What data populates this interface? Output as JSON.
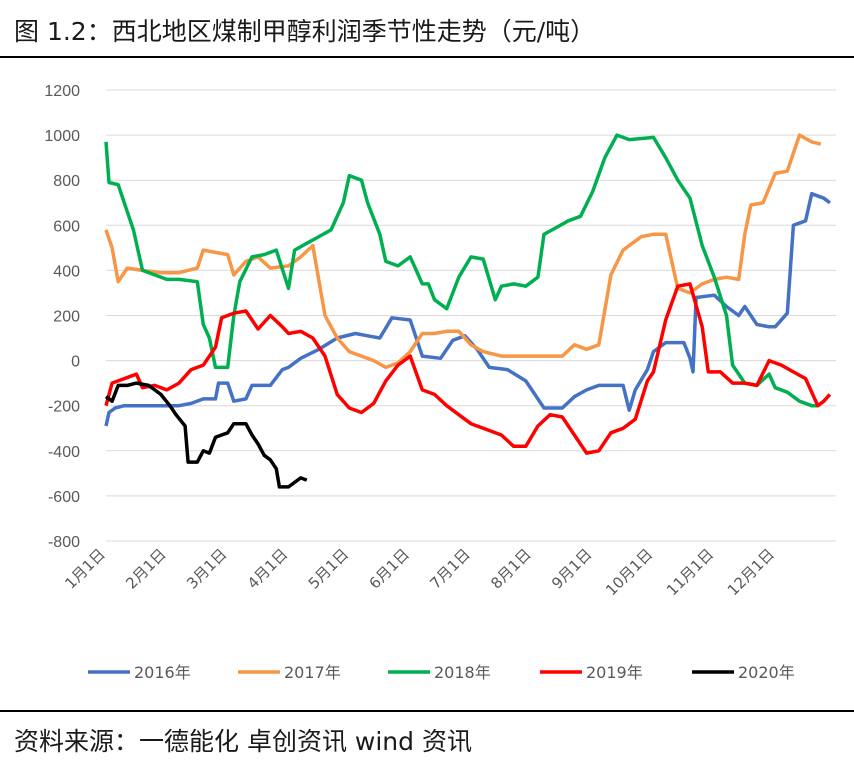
{
  "figure": {
    "title": "图 1.2：西北地区煤制甲醇利润季节性走势（元/吨）",
    "source": "资料来源：一德能化  卓创资讯  wind 资讯"
  },
  "chart_data": {
    "type": "line",
    "title": "图 1.2：西北地区煤制甲醇利润季节性走势（元/吨）",
    "ylabel": "",
    "xlabel": "",
    "ylim": [
      -800,
      1200
    ],
    "yticks": [
      -800,
      -600,
      -400,
      -200,
      0,
      200,
      400,
      600,
      800,
      1000,
      1200
    ],
    "x_domain": [
      0,
      12
    ],
    "xtick_positions": [
      0,
      1,
      2,
      3,
      4,
      5,
      6,
      7,
      8,
      9,
      10,
      11
    ],
    "xtick_labels": [
      "1月1日",
      "2月1日",
      "3月1日",
      "4月1日",
      "5月1日",
      "6月1日",
      "7月1日",
      "8月1日",
      "9月1日",
      "10月1日",
      "11月1日",
      "12月1日"
    ],
    "grid": true,
    "legend_position": "bottom",
    "series": [
      {
        "name": "2016年",
        "color": "#4472C4",
        "points": [
          [
            0,
            -290
          ],
          [
            0.05,
            -230
          ],
          [
            0.15,
            -210
          ],
          [
            0.3,
            -200
          ],
          [
            0.6,
            -200
          ],
          [
            0.9,
            -200
          ],
          [
            1.2,
            -200
          ],
          [
            1.4,
            -190
          ],
          [
            1.6,
            -170
          ],
          [
            1.8,
            -170
          ],
          [
            1.85,
            -100
          ],
          [
            2.0,
            -100
          ],
          [
            2.1,
            -180
          ],
          [
            2.3,
            -170
          ],
          [
            2.4,
            -110
          ],
          [
            2.7,
            -110
          ],
          [
            2.9,
            -40
          ],
          [
            3.0,
            -30
          ],
          [
            3.2,
            10
          ],
          [
            3.5,
            50
          ],
          [
            3.8,
            100
          ],
          [
            4.1,
            120
          ],
          [
            4.3,
            110
          ],
          [
            4.5,
            100
          ],
          [
            4.7,
            190
          ],
          [
            5.0,
            180
          ],
          [
            5.2,
            20
          ],
          [
            5.5,
            10
          ],
          [
            5.7,
            90
          ],
          [
            5.9,
            110
          ],
          [
            6.1,
            50
          ],
          [
            6.3,
            -30
          ],
          [
            6.6,
            -40
          ],
          [
            6.9,
            -90
          ],
          [
            7.2,
            -210
          ],
          [
            7.5,
            -210
          ],
          [
            7.7,
            -160
          ],
          [
            7.9,
            -130
          ],
          [
            8.1,
            -110
          ],
          [
            8.3,
            -110
          ],
          [
            8.5,
            -110
          ],
          [
            8.6,
            -220
          ],
          [
            8.7,
            -130
          ],
          [
            8.9,
            -40
          ],
          [
            9.0,
            40
          ],
          [
            9.2,
            80
          ],
          [
            9.5,
            80
          ],
          [
            9.6,
            10
          ],
          [
            9.65,
            -50
          ],
          [
            9.7,
            280
          ],
          [
            10.0,
            290
          ],
          [
            10.2,
            240
          ],
          [
            10.4,
            200
          ],
          [
            10.5,
            240
          ],
          [
            10.7,
            160
          ],
          [
            10.9,
            150
          ],
          [
            11.0,
            150
          ],
          [
            11.2,
            210
          ],
          [
            11.3,
            600
          ],
          [
            11.5,
            620
          ],
          [
            11.6,
            740
          ],
          [
            11.8,
            720
          ],
          [
            11.9,
            700
          ]
        ]
      },
      {
        "name": "2017年",
        "color": "#F79646",
        "points": [
          [
            0,
            580
          ],
          [
            0.1,
            500
          ],
          [
            0.2,
            350
          ],
          [
            0.35,
            410
          ],
          [
            0.6,
            400
          ],
          [
            0.9,
            390
          ],
          [
            1.2,
            390
          ],
          [
            1.5,
            410
          ],
          [
            1.6,
            490
          ],
          [
            1.8,
            480
          ],
          [
            2.0,
            470
          ],
          [
            2.1,
            380
          ],
          [
            2.3,
            440
          ],
          [
            2.5,
            460
          ],
          [
            2.7,
            410
          ],
          [
            3.0,
            420
          ],
          [
            3.2,
            460
          ],
          [
            3.4,
            510
          ],
          [
            3.6,
            200
          ],
          [
            3.8,
            100
          ],
          [
            4.0,
            40
          ],
          [
            4.2,
            20
          ],
          [
            4.4,
            0
          ],
          [
            4.6,
            -30
          ],
          [
            4.8,
            -10
          ],
          [
            5.0,
            40
          ],
          [
            5.2,
            120
          ],
          [
            5.4,
            120
          ],
          [
            5.6,
            130
          ],
          [
            5.8,
            130
          ],
          [
            6.0,
            70
          ],
          [
            6.2,
            40
          ],
          [
            6.5,
            20
          ],
          [
            6.7,
            20
          ],
          [
            7.0,
            20
          ],
          [
            7.3,
            20
          ],
          [
            7.5,
            20
          ],
          [
            7.7,
            70
          ],
          [
            7.9,
            50
          ],
          [
            8.1,
            70
          ],
          [
            8.3,
            380
          ],
          [
            8.5,
            490
          ],
          [
            8.8,
            550
          ],
          [
            9.0,
            560
          ],
          [
            9.2,
            560
          ],
          [
            9.4,
            320
          ],
          [
            9.6,
            300
          ],
          [
            9.8,
            340
          ],
          [
            10.0,
            360
          ],
          [
            10.2,
            370
          ],
          [
            10.4,
            360
          ],
          [
            10.5,
            560
          ],
          [
            10.6,
            690
          ],
          [
            10.8,
            700
          ],
          [
            11.0,
            830
          ],
          [
            11.2,
            840
          ],
          [
            11.4,
            1000
          ],
          [
            11.6,
            970
          ],
          [
            11.75,
            960
          ]
        ]
      },
      {
        "name": "2018年",
        "color": "#00B050",
        "points": [
          [
            0,
            970
          ],
          [
            0.05,
            790
          ],
          [
            0.2,
            780
          ],
          [
            0.3,
            700
          ],
          [
            0.45,
            580
          ],
          [
            0.6,
            400
          ],
          [
            0.8,
            380
          ],
          [
            1.0,
            360
          ],
          [
            1.2,
            360
          ],
          [
            1.5,
            350
          ],
          [
            1.6,
            160
          ],
          [
            1.7,
            100
          ],
          [
            1.8,
            -30
          ],
          [
            2.0,
            -30
          ],
          [
            2.1,
            200
          ],
          [
            2.2,
            350
          ],
          [
            2.4,
            460
          ],
          [
            2.6,
            470
          ],
          [
            2.8,
            490
          ],
          [
            3.0,
            320
          ],
          [
            3.1,
            490
          ],
          [
            3.3,
            520
          ],
          [
            3.5,
            550
          ],
          [
            3.7,
            580
          ],
          [
            3.9,
            700
          ],
          [
            4.0,
            820
          ],
          [
            4.2,
            800
          ],
          [
            4.3,
            700
          ],
          [
            4.5,
            560
          ],
          [
            4.6,
            440
          ],
          [
            4.8,
            420
          ],
          [
            5.0,
            460
          ],
          [
            5.2,
            340
          ],
          [
            5.3,
            340
          ],
          [
            5.4,
            270
          ],
          [
            5.6,
            230
          ],
          [
            5.8,
            370
          ],
          [
            6.0,
            460
          ],
          [
            6.2,
            450
          ],
          [
            6.4,
            270
          ],
          [
            6.5,
            330
          ],
          [
            6.7,
            340
          ],
          [
            6.9,
            330
          ],
          [
            7.1,
            370
          ],
          [
            7.2,
            560
          ],
          [
            7.4,
            590
          ],
          [
            7.6,
            620
          ],
          [
            7.8,
            640
          ],
          [
            8.0,
            750
          ],
          [
            8.2,
            900
          ],
          [
            8.4,
            1000
          ],
          [
            8.6,
            980
          ],
          [
            9.0,
            990
          ],
          [
            9.2,
            900
          ],
          [
            9.4,
            800
          ],
          [
            9.6,
            720
          ],
          [
            9.8,
            510
          ],
          [
            10.0,
            370
          ],
          [
            10.2,
            200
          ],
          [
            10.3,
            -20
          ],
          [
            10.5,
            -100
          ],
          [
            10.7,
            -110
          ],
          [
            10.9,
            -60
          ],
          [
            11.0,
            -120
          ],
          [
            11.2,
            -140
          ],
          [
            11.4,
            -180
          ],
          [
            11.6,
            -200
          ],
          [
            11.7,
            -200
          ]
        ]
      },
      {
        "name": "2019年",
        "color": "#FF0000",
        "points": [
          [
            0,
            -200
          ],
          [
            0.1,
            -100
          ],
          [
            0.3,
            -80
          ],
          [
            0.5,
            -60
          ],
          [
            0.6,
            -120
          ],
          [
            0.8,
            -110
          ],
          [
            1.0,
            -130
          ],
          [
            1.2,
            -100
          ],
          [
            1.4,
            -40
          ],
          [
            1.6,
            -20
          ],
          [
            1.8,
            60
          ],
          [
            1.9,
            190
          ],
          [
            2.1,
            210
          ],
          [
            2.3,
            220
          ],
          [
            2.5,
            140
          ],
          [
            2.7,
            200
          ],
          [
            2.9,
            150
          ],
          [
            3.0,
            120
          ],
          [
            3.2,
            130
          ],
          [
            3.4,
            100
          ],
          [
            3.6,
            20
          ],
          [
            3.8,
            -150
          ],
          [
            4.0,
            -210
          ],
          [
            4.2,
            -230
          ],
          [
            4.4,
            -190
          ],
          [
            4.6,
            -90
          ],
          [
            4.8,
            -20
          ],
          [
            5.0,
            20
          ],
          [
            5.2,
            -130
          ],
          [
            5.4,
            -150
          ],
          [
            5.6,
            -200
          ],
          [
            5.8,
            -240
          ],
          [
            6.0,
            -280
          ],
          [
            6.2,
            -300
          ],
          [
            6.5,
            -330
          ],
          [
            6.7,
            -380
          ],
          [
            6.9,
            -380
          ],
          [
            7.1,
            -290
          ],
          [
            7.3,
            -240
          ],
          [
            7.5,
            -250
          ],
          [
            7.7,
            -330
          ],
          [
            7.9,
            -410
          ],
          [
            8.1,
            -400
          ],
          [
            8.3,
            -320
          ],
          [
            8.5,
            -300
          ],
          [
            8.7,
            -260
          ],
          [
            8.9,
            -90
          ],
          [
            9.0,
            -50
          ],
          [
            9.2,
            180
          ],
          [
            9.4,
            330
          ],
          [
            9.6,
            340
          ],
          [
            9.8,
            150
          ],
          [
            9.9,
            -50
          ],
          [
            10.1,
            -50
          ],
          [
            10.3,
            -100
          ],
          [
            10.5,
            -100
          ],
          [
            10.7,
            -110
          ],
          [
            10.9,
            0
          ],
          [
            11.1,
            -20
          ],
          [
            11.3,
            -50
          ],
          [
            11.5,
            -80
          ],
          [
            11.7,
            -200
          ],
          [
            11.8,
            -180
          ],
          [
            11.9,
            -150
          ]
        ]
      },
      {
        "name": "2020年",
        "color": "#000000",
        "points": [
          [
            0,
            -160
          ],
          [
            0.1,
            -180
          ],
          [
            0.2,
            -110
          ],
          [
            0.35,
            -110
          ],
          [
            0.5,
            -100
          ],
          [
            0.7,
            -110
          ],
          [
            0.9,
            -150
          ],
          [
            1.05,
            -200
          ],
          [
            1.15,
            -240
          ],
          [
            1.3,
            -290
          ],
          [
            1.35,
            -450
          ],
          [
            1.5,
            -450
          ],
          [
            1.6,
            -400
          ],
          [
            1.7,
            -410
          ],
          [
            1.8,
            -340
          ],
          [
            1.9,
            -330
          ],
          [
            2.0,
            -320
          ],
          [
            2.1,
            -280
          ],
          [
            2.3,
            -280
          ],
          [
            2.4,
            -330
          ],
          [
            2.5,
            -370
          ],
          [
            2.6,
            -420
          ],
          [
            2.7,
            -440
          ],
          [
            2.8,
            -480
          ],
          [
            2.85,
            -560
          ],
          [
            3.0,
            -560
          ],
          [
            3.1,
            -540
          ],
          [
            3.2,
            -520
          ],
          [
            3.3,
            -530
          ]
        ]
      }
    ]
  }
}
